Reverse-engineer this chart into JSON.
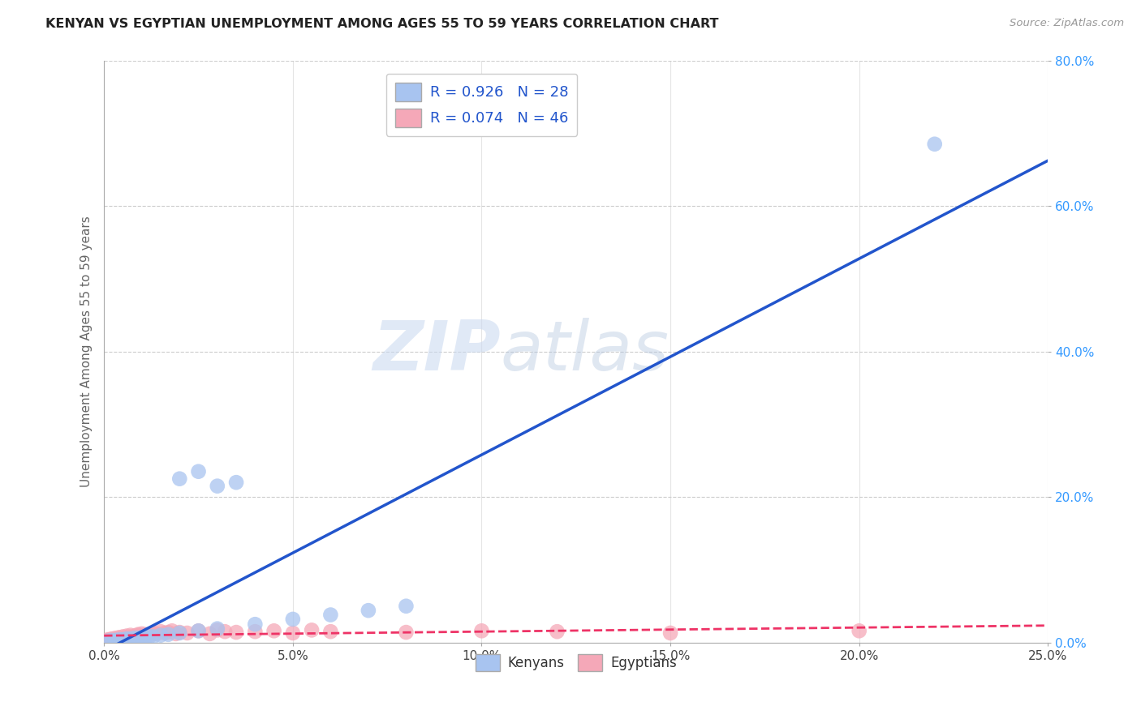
{
  "title": "KENYAN VS EGYPTIAN UNEMPLOYMENT AMONG AGES 55 TO 59 YEARS CORRELATION CHART",
  "source": "Source: ZipAtlas.com",
  "ylabel": "Unemployment Among Ages 55 to 59 years",
  "xlim": [
    0.0,
    0.25
  ],
  "ylim": [
    0.0,
    0.8
  ],
  "xticks": [
    0.0,
    0.05,
    0.1,
    0.15,
    0.2,
    0.25
  ],
  "yticks": [
    0.0,
    0.2,
    0.4,
    0.6,
    0.8
  ],
  "kenyan_color": "#a8c4f0",
  "egyptian_color": "#f5a8b8",
  "kenyan_line_color": "#2255cc",
  "egyptian_line_color": "#ee3366",
  "kenyan_R": 0.926,
  "kenyan_N": 28,
  "egyptian_R": 0.074,
  "egyptian_N": 46,
  "watermark_zip": "ZIP",
  "watermark_atlas": "atlas",
  "background_color": "#ffffff",
  "grid_color": "#cccccc",
  "kenyan_x": [
    0.001,
    0.002,
    0.003,
    0.004,
    0.005,
    0.006,
    0.007,
    0.008,
    0.009,
    0.01,
    0.011,
    0.012,
    0.013,
    0.015,
    0.017,
    0.02,
    0.025,
    0.03,
    0.04,
    0.05,
    0.06,
    0.07,
    0.08,
    0.02,
    0.025,
    0.03,
    0.22,
    0.035
  ],
  "kenyan_y": [
    0.002,
    0.003,
    0.003,
    0.004,
    0.004,
    0.005,
    0.005,
    0.006,
    0.006,
    0.007,
    0.007,
    0.008,
    0.008,
    0.01,
    0.011,
    0.013,
    0.016,
    0.019,
    0.025,
    0.032,
    0.038,
    0.044,
    0.05,
    0.225,
    0.235,
    0.215,
    0.685,
    0.22
  ],
  "egyptian_x": [
    0.001,
    0.001,
    0.002,
    0.002,
    0.003,
    0.003,
    0.004,
    0.004,
    0.005,
    0.005,
    0.006,
    0.006,
    0.007,
    0.007,
    0.008,
    0.008,
    0.009,
    0.009,
    0.01,
    0.01,
    0.011,
    0.012,
    0.013,
    0.014,
    0.015,
    0.016,
    0.017,
    0.018,
    0.019,
    0.02,
    0.022,
    0.025,
    0.028,
    0.03,
    0.032,
    0.035,
    0.04,
    0.045,
    0.05,
    0.055,
    0.06,
    0.08,
    0.1,
    0.12,
    0.15,
    0.2
  ],
  "egyptian_y": [
    0.003,
    0.004,
    0.003,
    0.005,
    0.004,
    0.006,
    0.004,
    0.007,
    0.005,
    0.008,
    0.006,
    0.009,
    0.007,
    0.01,
    0.008,
    0.009,
    0.01,
    0.011,
    0.009,
    0.012,
    0.011,
    0.01,
    0.013,
    0.012,
    0.015,
    0.013,
    0.014,
    0.016,
    0.012,
    0.014,
    0.013,
    0.016,
    0.012,
    0.017,
    0.015,
    0.014,
    0.015,
    0.016,
    0.013,
    0.017,
    0.015,
    0.014,
    0.016,
    0.015,
    0.013,
    0.016
  ]
}
